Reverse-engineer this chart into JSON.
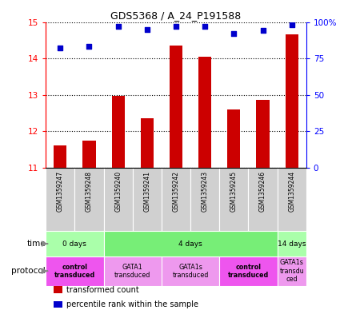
{
  "title": "GDS5368 / A_24_P191588",
  "samples": [
    "GSM1359247",
    "GSM1359248",
    "GSM1359240",
    "GSM1359241",
    "GSM1359242",
    "GSM1359243",
    "GSM1359245",
    "GSM1359246",
    "GSM1359244"
  ],
  "bar_values": [
    11.6,
    11.75,
    12.97,
    12.35,
    14.35,
    14.05,
    12.6,
    12.85,
    14.65
  ],
  "percentile_values": [
    82,
    83,
    97,
    95,
    97,
    97,
    92,
    94,
    98
  ],
  "ylim_left": [
    11,
    15
  ],
  "ylim_right": [
    0,
    100
  ],
  "yticks_left": [
    11,
    12,
    13,
    14,
    15
  ],
  "yticks_right": [
    0,
    25,
    50,
    75,
    100
  ],
  "bar_color": "#cc0000",
  "percentile_color": "#0000cc",
  "sample_box_color": "#d0d0d0",
  "time_groups": [
    {
      "label": "0 days",
      "start": 0,
      "end": 2,
      "color": "#aaffaa"
    },
    {
      "label": "4 days",
      "start": 2,
      "end": 8,
      "color": "#77ee77"
    },
    {
      "label": "14 days",
      "start": 8,
      "end": 9,
      "color": "#aaffaa"
    }
  ],
  "protocol_groups": [
    {
      "label": "control\ntransduced",
      "start": 0,
      "end": 2,
      "color": "#ee55ee",
      "bold": true
    },
    {
      "label": "GATA1\ntransduced",
      "start": 2,
      "end": 4,
      "color": "#ee99ee",
      "bold": false
    },
    {
      "label": "GATA1s\ntransduced",
      "start": 4,
      "end": 6,
      "color": "#ee99ee",
      "bold": false
    },
    {
      "label": "control\ntransduced",
      "start": 6,
      "end": 8,
      "color": "#ee55ee",
      "bold": true
    },
    {
      "label": "GATA1s\ntransdu\nced",
      "start": 8,
      "end": 9,
      "color": "#ee99ee",
      "bold": false
    }
  ],
  "legend_items": [
    {
      "label": "transformed count",
      "color": "#cc0000"
    },
    {
      "label": "percentile rank within the sample",
      "color": "#0000cc"
    }
  ]
}
